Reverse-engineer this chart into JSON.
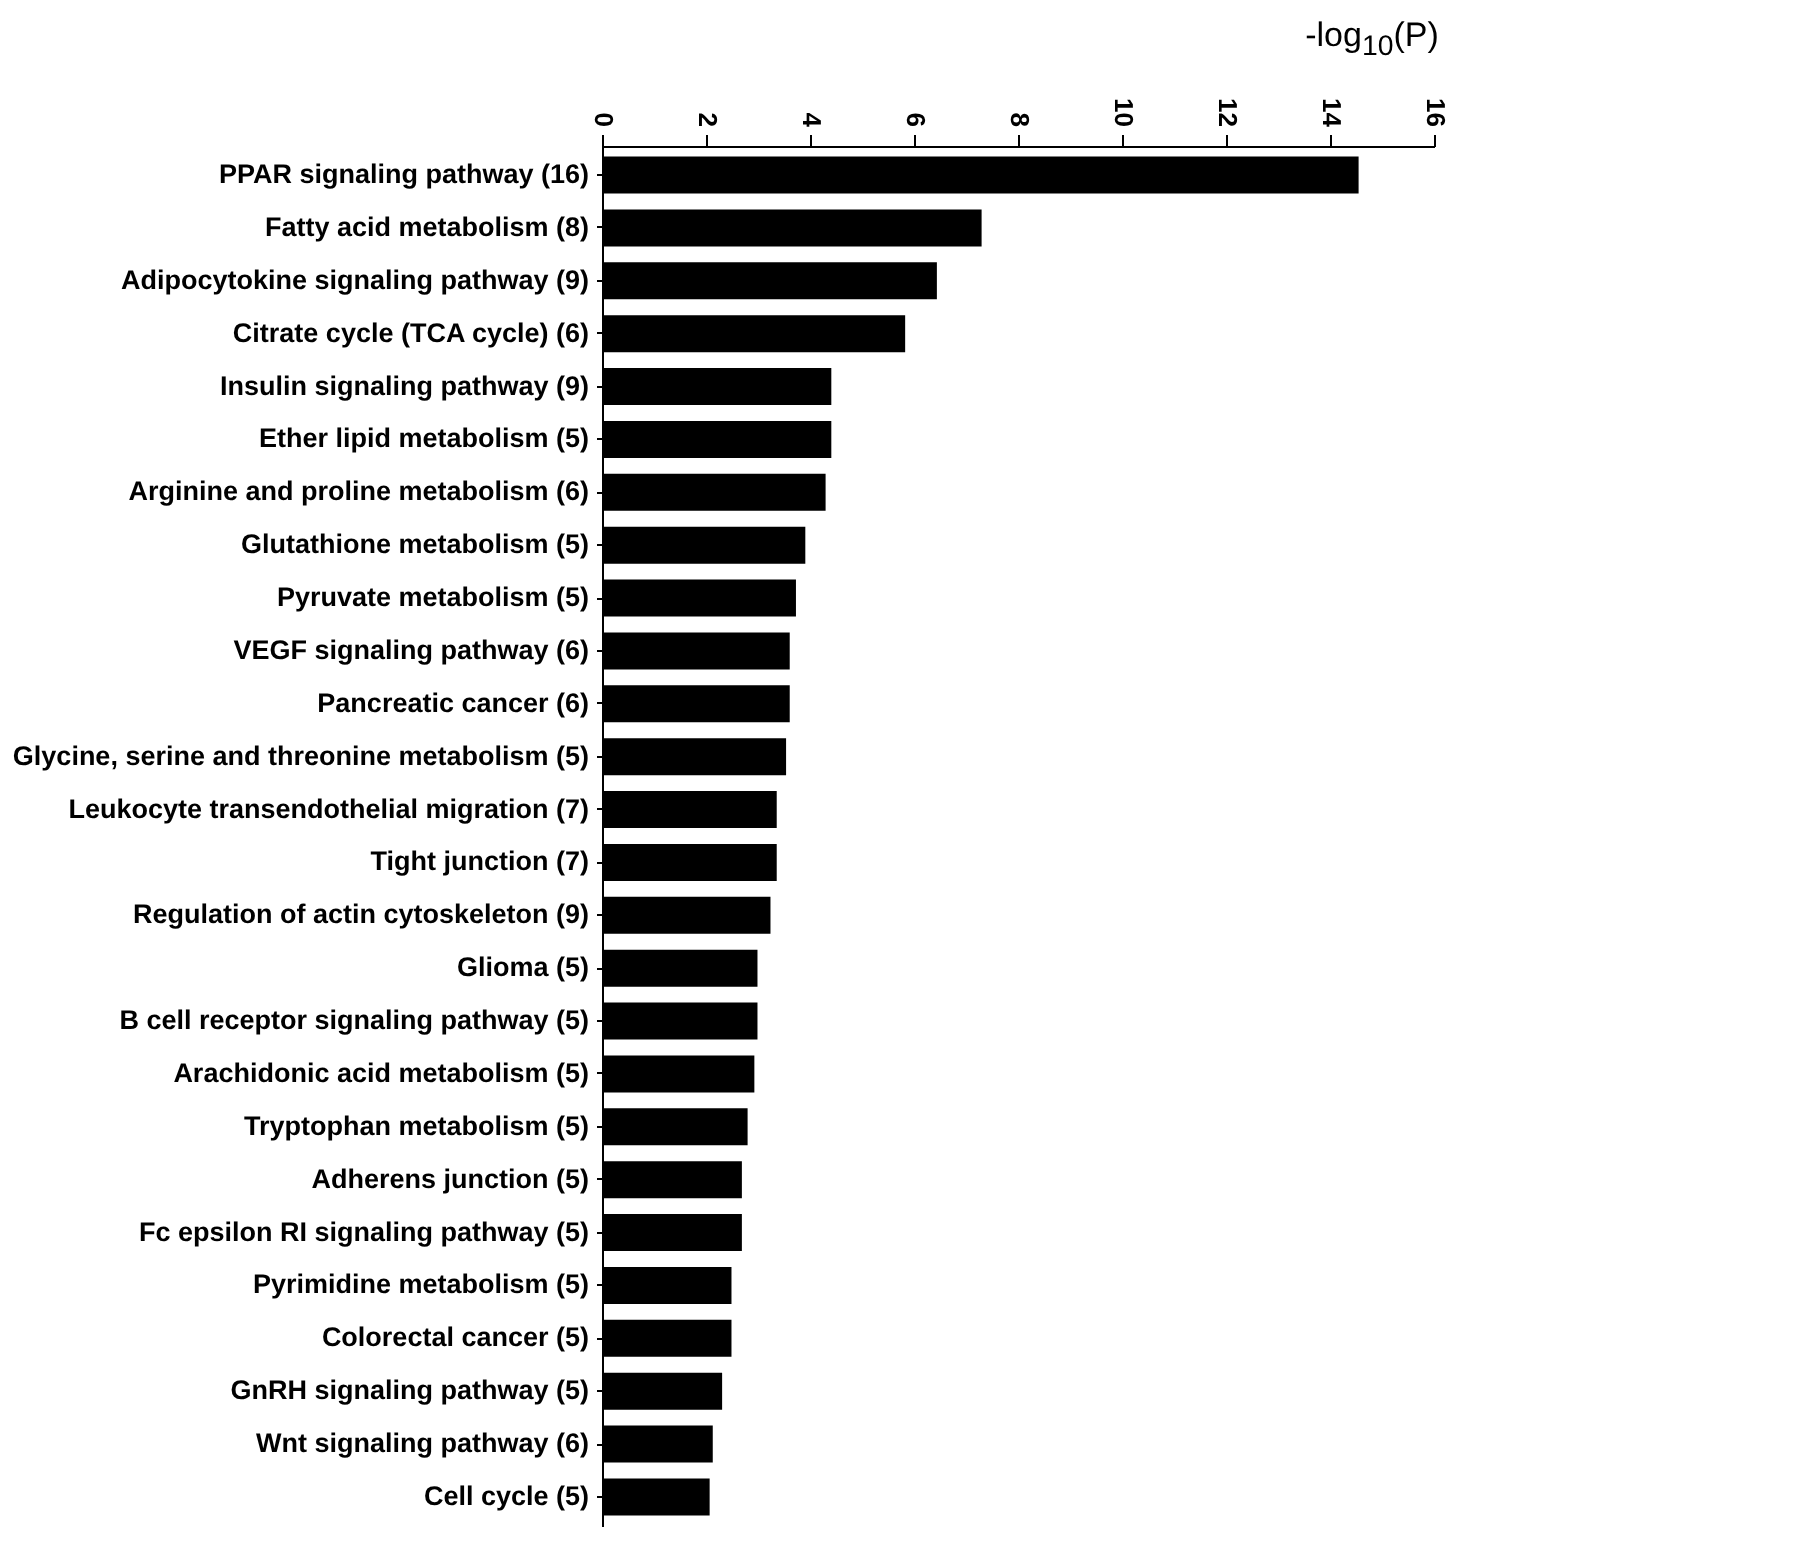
{
  "chart_data": {
    "type": "bar",
    "orientation": "horizontal",
    "xlabel": "-log$_{10}$(P)",
    "categories": [
      "PPAR signaling pathway (16)",
      "Fatty acid metabolism (8)",
      "Adipocytokine signaling pathway (9)",
      "Citrate cycle (TCA cycle) (6)",
      "Insulin signaling pathway (9)",
      "Ether lipid metabolism (5)",
      "Arginine and proline metabolism (6)",
      "Glutathione metabolism (5)",
      "Pyruvate metabolism (5)",
      "VEGF signaling pathway (6)",
      "Pancreatic cancer (6)",
      "Glycine, serine and threonine metabolism (5)",
      "Leukocyte transendothelial migration (7)",
      "Tight junction (7)",
      "Regulation of actin cytoskeleton (9)",
      "Glioma (5)",
      "B cell receptor signaling pathway (5)",
      "Arachidonic acid metabolism (5)",
      "Tryptophan metabolism (5)",
      "Adherens junction (5)",
      "Fc epsilon RI signaling pathway (5)",
      "Pyrimidine metabolism (5)",
      "Colorectal cancer (5)",
      "GnRH signaling pathway (5)",
      "Wnt signaling pathway (6)",
      "Cell cycle (5)"
    ],
    "values": [
      14.55,
      7.3,
      6.44,
      5.83,
      4.41,
      4.41,
      4.3,
      3.91,
      3.73,
      3.61,
      3.61,
      3.54,
      3.36,
      3.36,
      3.24,
      2.99,
      2.99,
      2.93,
      2.8,
      2.69,
      2.69,
      2.49,
      2.49,
      2.31,
      2.13,
      2.07
    ],
    "color": "#000000",
    "xlim": [
      0,
      16
    ],
    "xticks": [
      0,
      2,
      4,
      6,
      8,
      10,
      12,
      14,
      16
    ]
  }
}
